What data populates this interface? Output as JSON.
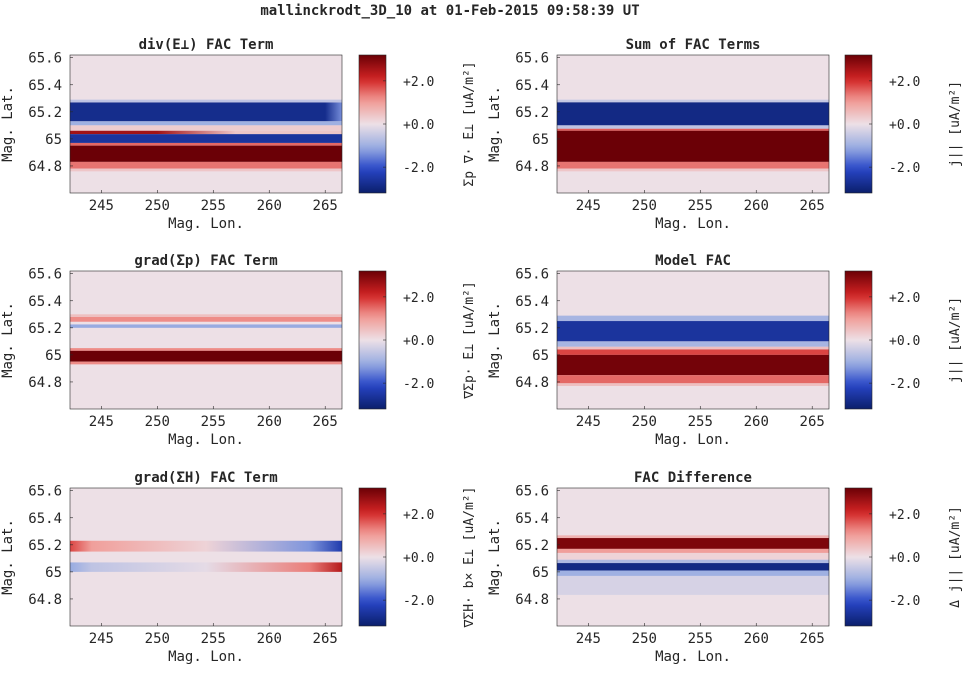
{
  "figure": {
    "title": "mallinckrodt_3D_10 at 01-Feb-2015 09:58:39 UT"
  },
  "colormap": {
    "neg": "#0b1f6b",
    "zero": "#ede0e6",
    "pos": "#6b0006"
  },
  "chart_data": [
    {
      "type": "heatmap",
      "title": "div(E⊥) FAC Term",
      "xlabel": "Mag. Lon.",
      "ylabel": "Mag. Lat.",
      "xlim": [
        242.2,
        266.5
      ],
      "ylim": [
        64.6,
        65.62
      ],
      "xticks": [
        245,
        250,
        255,
        260,
        265
      ],
      "yticks": [
        64.8,
        65,
        65.2,
        65.4,
        65.6
      ],
      "ytick_labels": [
        "64.8",
        "65",
        "65.2",
        "65.4",
        "65.6"
      ],
      "colorbar": {
        "label": "Σp ∇· E⊥ [uA/m²]",
        "range": [
          -3.2,
          3.2
        ],
        "ticks": [
          2.0,
          0.0,
          -2.0
        ],
        "tick_labels": [
          "+2.0",
          "+0.0",
          "-2.0"
        ]
      },
      "bands": [
        {
          "lat_min": 65.13,
          "lat_max": 65.27,
          "value": -2.8,
          "x_end": 265.0,
          "x_fade_end": 266.5,
          "fade_to": -1.4
        },
        {
          "lat_min": 65.27,
          "lat_max": 65.29,
          "value": -0.6
        },
        {
          "lat_min": 65.1,
          "lat_max": 65.13,
          "value": -1.0
        },
        {
          "lat_min": 65.06,
          "lat_max": 65.1,
          "value": 0.3
        },
        {
          "lat_min": 65.035,
          "lat_max": 65.06,
          "value": 2.6,
          "x_end": 250.0,
          "x_fade_end": 257.0,
          "fade_to": 0.4
        },
        {
          "lat_min": 64.97,
          "lat_max": 65.035,
          "value": -2.6
        },
        {
          "lat_min": 64.95,
          "lat_max": 64.97,
          "value": 1.5
        },
        {
          "lat_min": 64.83,
          "lat_max": 64.95,
          "value": 3.2
        },
        {
          "lat_min": 64.78,
          "lat_max": 64.83,
          "value": 1.4
        },
        {
          "lat_min": 64.76,
          "lat_max": 64.78,
          "value": 0.4
        }
      ]
    },
    {
      "type": "heatmap",
      "title": "Sum of FAC Terms",
      "xlabel": "Mag. Lon.",
      "ylabel": "Mag. Lat.",
      "xlim": [
        242.2,
        266.5
      ],
      "ylim": [
        64.6,
        65.62
      ],
      "xticks": [
        245,
        250,
        255,
        260,
        265
      ],
      "yticks": [
        64.8,
        65,
        65.2,
        65.4,
        65.6
      ],
      "ytick_labels": [
        "64.8",
        "65",
        "65.2",
        "65.4",
        "65.6"
      ],
      "colorbar": {
        "label": "j|| [uA/m²]",
        "range": [
          -3.2,
          3.2
        ],
        "ticks": [
          2.0,
          0.0,
          -2.0
        ],
        "tick_labels": [
          "+2.0",
          "+0.0",
          "-2.0"
        ]
      },
      "bands": [
        {
          "lat_min": 65.27,
          "lat_max": 65.29,
          "value": -0.5
        },
        {
          "lat_min": 65.1,
          "lat_max": 65.27,
          "value": -2.9
        },
        {
          "lat_min": 65.075,
          "lat_max": 65.1,
          "value": -0.6
        },
        {
          "lat_min": 65.06,
          "lat_max": 65.075,
          "value": 1.6
        },
        {
          "lat_min": 64.83,
          "lat_max": 65.06,
          "value": 3.3
        },
        {
          "lat_min": 64.78,
          "lat_max": 64.83,
          "value": 1.4
        },
        {
          "lat_min": 64.76,
          "lat_max": 64.78,
          "value": 0.4
        }
      ]
    },
    {
      "type": "heatmap",
      "title": "grad(Σp) FAC Term",
      "xlabel": "Mag. Lon.",
      "ylabel": "Mag. Lat.",
      "xlim": [
        242.2,
        266.5
      ],
      "ylim": [
        64.6,
        65.62
      ],
      "xticks": [
        245,
        250,
        255,
        260,
        265
      ],
      "yticks": [
        64.8,
        65,
        65.2,
        65.4,
        65.6
      ],
      "ytick_labels": [
        "64.8",
        "65",
        "65.2",
        "65.4",
        "65.6"
      ],
      "colorbar": {
        "label": "∇Σp· E⊥ [uA/m²]",
        "range": [
          -3.2,
          3.2
        ],
        "ticks": [
          2.0,
          0.0,
          -2.0
        ],
        "tick_labels": [
          "+2.0",
          "+0.0",
          "-2.0"
        ]
      },
      "bands": [
        {
          "lat_min": 65.28,
          "lat_max": 65.3,
          "value": 0.5
        },
        {
          "lat_min": 65.245,
          "lat_max": 65.28,
          "value": 1.2
        },
        {
          "lat_min": 65.2,
          "lat_max": 65.225,
          "value": -1.1
        },
        {
          "lat_min": 65.03,
          "lat_max": 65.05,
          "value": 1.2
        },
        {
          "lat_min": 64.95,
          "lat_max": 65.03,
          "value": 3.3
        },
        {
          "lat_min": 64.93,
          "lat_max": 64.95,
          "value": 1.2
        }
      ]
    },
    {
      "type": "heatmap",
      "title": "Model FAC",
      "xlabel": "Mag. Lon.",
      "ylabel": "Mag. Lat.",
      "xlim": [
        242.2,
        266.5
      ],
      "ylim": [
        64.6,
        65.62
      ],
      "xticks": [
        245,
        250,
        255,
        260,
        265
      ],
      "yticks": [
        64.8,
        65,
        65.2,
        65.4,
        65.6
      ],
      "ytick_labels": [
        "64.8",
        "65",
        "65.2",
        "65.4",
        "65.6"
      ],
      "colorbar": {
        "label": "j|| [uA/m²]",
        "range": [
          -3.2,
          3.2
        ],
        "ticks": [
          2.0,
          0.0,
          -2.0
        ],
        "tick_labels": [
          "+2.0",
          "+0.0",
          "-2.0"
        ]
      },
      "bands": [
        {
          "lat_min": 65.25,
          "lat_max": 65.29,
          "value": -0.9
        },
        {
          "lat_min": 65.1,
          "lat_max": 65.25,
          "value": -2.6
        },
        {
          "lat_min": 65.06,
          "lat_max": 65.1,
          "value": -0.9
        },
        {
          "lat_min": 65.04,
          "lat_max": 65.06,
          "value": 0.5
        },
        {
          "lat_min": 65.0,
          "lat_max": 65.04,
          "value": 1.8
        },
        {
          "lat_min": 64.85,
          "lat_max": 65.0,
          "value": 3.1
        },
        {
          "lat_min": 64.79,
          "lat_max": 64.85,
          "value": 1.5
        },
        {
          "lat_min": 64.77,
          "lat_max": 64.79,
          "value": 0.5
        }
      ]
    },
    {
      "type": "heatmap",
      "title": "grad(ΣH) FAC Term",
      "xlabel": "Mag. Lon.",
      "ylabel": "Mag. Lat.",
      "xlim": [
        242.2,
        266.5
      ],
      "ylim": [
        64.6,
        65.62
      ],
      "xticks": [
        245,
        250,
        255,
        260,
        265
      ],
      "yticks": [
        64.8,
        65,
        65.2,
        65.4,
        65.6
      ],
      "ytick_labels": [
        "64.8",
        "65",
        "65.2",
        "65.4",
        "65.6"
      ],
      "colorbar": {
        "label": "∇ΣH· b× E⊥ [uA/m²]",
        "range": [
          -3.2,
          3.2
        ],
        "ticks": [
          2.0,
          0.0,
          -2.0
        ],
        "tick_labels": [
          "+2.0",
          "+0.0",
          "-2.0"
        ]
      },
      "gradient_bands": [
        {
          "lat_min": 65.15,
          "lat_max": 65.23,
          "left": 1.8,
          "mid": 0.2,
          "right": -2.4
        },
        {
          "lat_min": 65.0,
          "lat_max": 65.07,
          "left": -1.1,
          "mid": -0.1,
          "right": 2.4
        }
      ]
    },
    {
      "type": "heatmap",
      "title": "FAC Difference",
      "xlabel": "Mag. Lon.",
      "ylabel": "Mag. Lat.",
      "xlim": [
        242.2,
        266.5
      ],
      "ylim": [
        64.6,
        65.62
      ],
      "xticks": [
        245,
        250,
        255,
        260,
        265
      ],
      "yticks": [
        64.8,
        65,
        65.2,
        65.4,
        65.6
      ],
      "ytick_labels": [
        "64.8",
        "65",
        "65.2",
        "65.4",
        "65.6"
      ],
      "colorbar": {
        "label": "Δ j|| [uA/m²]",
        "range": [
          -3.2,
          3.2
        ],
        "ticks": [
          2.0,
          0.0,
          -2.0
        ],
        "tick_labels": [
          "+2.0",
          "+0.0",
          "-2.0"
        ]
      },
      "bands": [
        {
          "lat_min": 65.25,
          "lat_max": 65.27,
          "value": 0.7
        },
        {
          "lat_min": 65.17,
          "lat_max": 65.25,
          "value": 3.0
        },
        {
          "lat_min": 65.14,
          "lat_max": 65.17,
          "value": 1.0
        },
        {
          "lat_min": 65.09,
          "lat_max": 65.14,
          "value": 0.2
        },
        {
          "lat_min": 65.065,
          "lat_max": 65.09,
          "value": -0.8
        },
        {
          "lat_min": 65.01,
          "lat_max": 65.065,
          "value": -2.9
        },
        {
          "lat_min": 64.97,
          "lat_max": 65.01,
          "value": -1.0
        },
        {
          "lat_min": 64.83,
          "lat_max": 64.97,
          "value": -0.3
        }
      ]
    }
  ]
}
